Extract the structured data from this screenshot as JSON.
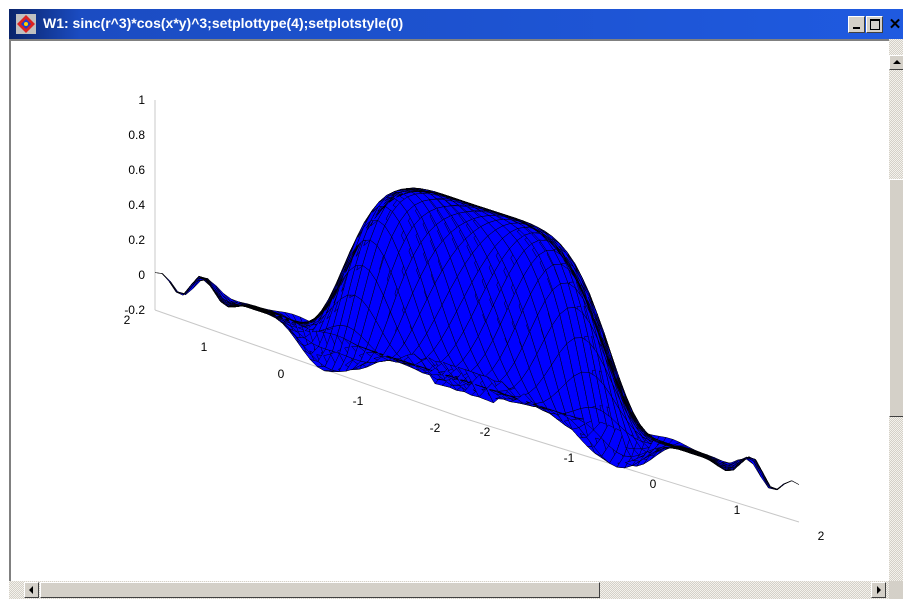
{
  "window": {
    "title": "W1: sinc(r^3)*cos(x*y)^3;setplottype(4);setplotstyle(0)",
    "icon": "plot-app-icon",
    "buttons": {
      "minimize": "minimize-icon",
      "maximize": "maximize-icon",
      "close": "✕"
    }
  },
  "colors": {
    "surface": "#0000ff",
    "mesh": "#000000",
    "titlebar": "#1f5ae0",
    "axis": "#c8c8c8"
  },
  "chart_data": {
    "type": "surface",
    "function": "sinc(r^3)*cos(x*y)^3",
    "plot_type": 4,
    "plot_style": 0,
    "zlim": [
      -0.2,
      1
    ],
    "z_ticks": [
      "1",
      "0.8",
      "0.6",
      "0.4",
      "0.2",
      "0",
      "-0.2"
    ],
    "y_ticks": [
      "2",
      "1",
      "0",
      "-1",
      "-2"
    ],
    "x_ticks": [
      "-2",
      "-1",
      "0",
      "1",
      "2"
    ],
    "xlim": [
      -2,
      2
    ],
    "ylim": [
      -2,
      2
    ],
    "grid": false
  }
}
